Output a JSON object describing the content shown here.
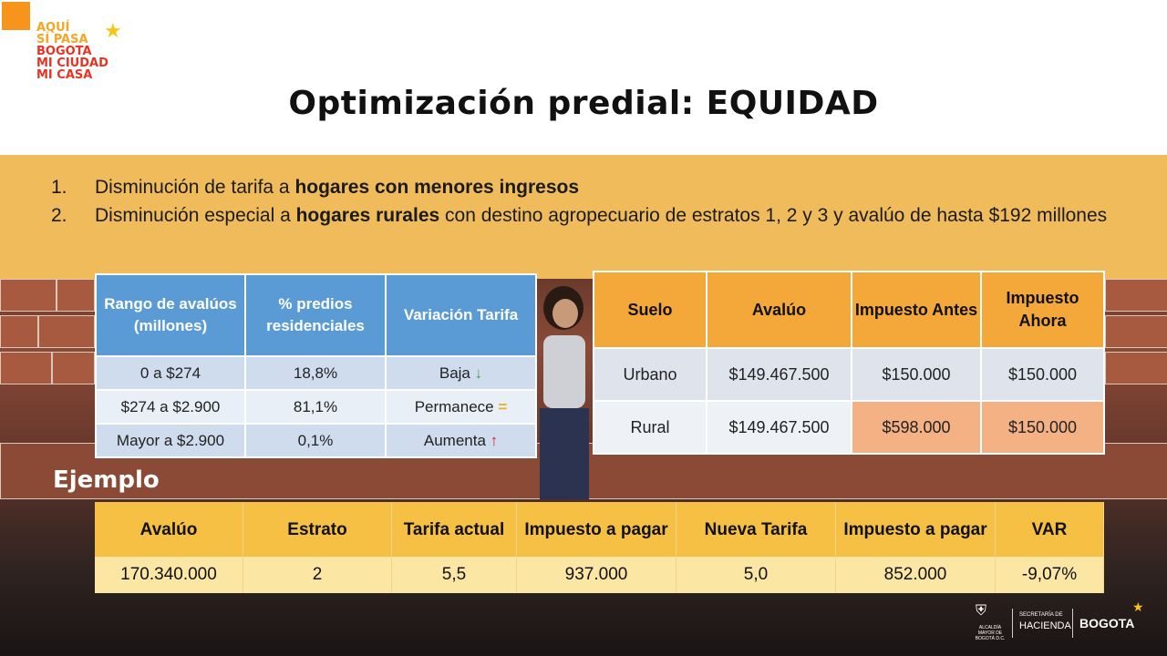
{
  "logo": {
    "lines": [
      "AQUÍ",
      "SÍ PASA",
      "BOGOTA",
      "MI CIUDAD",
      "MI CASA"
    ]
  },
  "title": "Optimización predial: EQUIDAD",
  "bullets": [
    {
      "num": "1.",
      "pre": "Disminución de tarifa a ",
      "bold": "hogares con menores ingresos",
      "post": ""
    },
    {
      "num": "2.",
      "pre": "Disminución especial a ",
      "bold": "hogares rurales",
      "post": " con destino agropecuario de estratos 1, 2 y 3 y avalúo de hasta $192 millones"
    }
  ],
  "tarifa_table": {
    "headers": [
      "Rango de avalúos (millones)",
      "% predios residenciales",
      "Variación Tarifa"
    ],
    "rows": [
      [
        "0 a $274",
        "18,8%",
        "Baja",
        "↓"
      ],
      [
        "$274 a $2.900",
        "81,1%",
        "Permanece",
        "="
      ],
      [
        "Mayor a $2.900",
        "0,1%",
        "Aumenta",
        "↑"
      ]
    ]
  },
  "suelo_table": {
    "headers": [
      "Suelo",
      "Avalúo",
      "Impuesto Antes",
      "Impuesto Ahora"
    ],
    "rows": [
      [
        "Urbano",
        "$149.467.500",
        "$150.000",
        "$150.000"
      ],
      [
        "Rural",
        "$149.467.500",
        "$598.000",
        "$150.000"
      ]
    ]
  },
  "ejemplo": {
    "label": "Ejemplo",
    "headers": [
      "Avalúo",
      "Estrato",
      "Tarifa actual",
      "Impuesto a pagar",
      "Nueva Tarifa",
      "Impuesto a pagar",
      "VAR"
    ],
    "row": [
      "170.340.000",
      "2",
      "5,5",
      "937.000",
      "5,0",
      "852.000",
      "-9,07%"
    ]
  },
  "footer": {
    "alcaldia": "ALCALDÍA MAYOR DE BOGOTÁ D.C.",
    "secretaria": "SECRETARÍA DE",
    "hacienda": "HACIENDA",
    "bogota": "BOGOTA"
  },
  "colors": {
    "band": "#f0bb5a",
    "table_blue": "#5b9bd5",
    "table_orange": "#f5a83a",
    "highlight": "#f4b183",
    "ejemplo_header": "#f5c043"
  }
}
